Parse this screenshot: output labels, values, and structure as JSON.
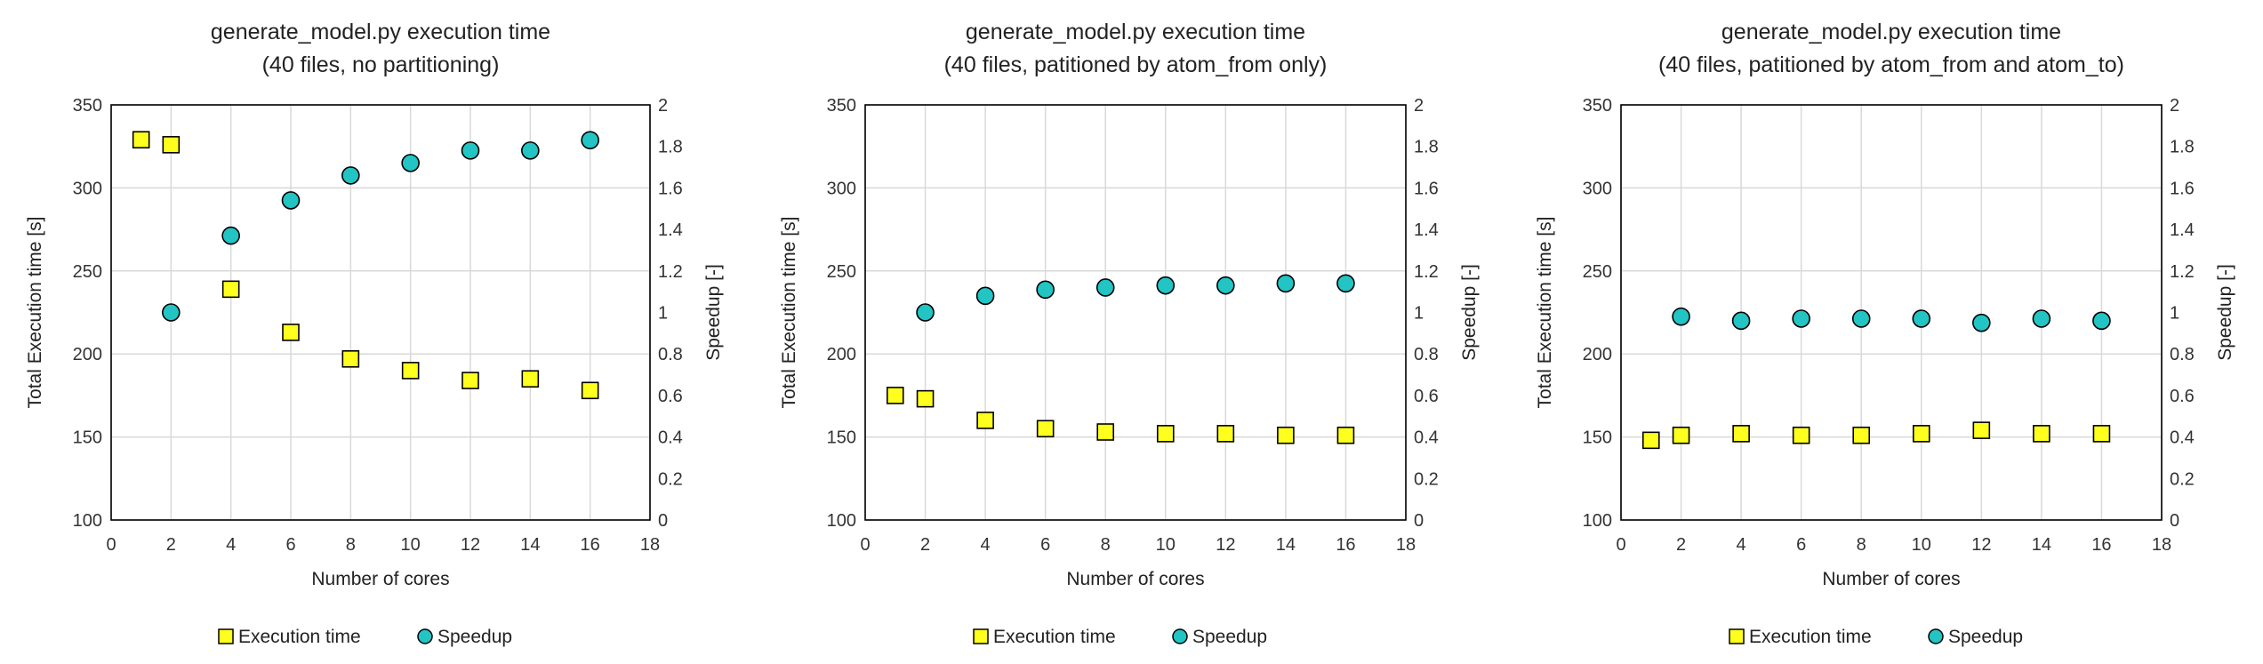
{
  "colors": {
    "execution": "#ffff1e",
    "speedup": "#22c4c4",
    "grid": "#d9d9d9",
    "axis": "#000000"
  },
  "chart_data": [
    {
      "type": "scatter",
      "title": "generate_model.py execution time",
      "subtitle": "(40 files, no partitioning)",
      "xlabel": "Number of cores",
      "ylabel": "Total Execution time [s]",
      "y2label": "Speedup [-]",
      "xlim": [
        0,
        18
      ],
      "xticks": [
        0,
        2,
        4,
        6,
        8,
        10,
        12,
        14,
        16,
        18
      ],
      "ylim": [
        100,
        350
      ],
      "yticks": [
        100,
        150,
        200,
        250,
        300,
        350
      ],
      "y2lim": [
        0,
        2
      ],
      "y2ticks": [
        "0",
        "0.2",
        "0.4",
        "0.6",
        "0.8",
        "1",
        "1.2",
        "1.4",
        "1.6",
        "1.8",
        "2"
      ],
      "grid": true,
      "legend_position": "bottom-center",
      "series": [
        {
          "name": "Execution time",
          "axis": "left",
          "marker": "square",
          "x": [
            1,
            2,
            4,
            6,
            8,
            10,
            12,
            14,
            16
          ],
          "y": [
            329,
            326,
            239,
            213,
            197,
            190,
            184,
            185,
            178
          ]
        },
        {
          "name": "Speedup",
          "axis": "right",
          "marker": "circle",
          "x": [
            2,
            4,
            6,
            8,
            10,
            12,
            14,
            16
          ],
          "y": [
            1.0,
            1.37,
            1.54,
            1.66,
            1.72,
            1.78,
            1.78,
            1.83
          ]
        }
      ]
    },
    {
      "type": "scatter",
      "title": "generate_model.py execution time",
      "subtitle": "(40 files, patitioned by atom_from only)",
      "xlabel": "Number of cores",
      "ylabel": "Total Execution time [s]",
      "y2label": "Speedup [-]",
      "xlim": [
        0,
        18
      ],
      "xticks": [
        0,
        2,
        4,
        6,
        8,
        10,
        12,
        14,
        16,
        18
      ],
      "ylim": [
        100,
        350
      ],
      "yticks": [
        100,
        150,
        200,
        250,
        300,
        350
      ],
      "y2lim": [
        0,
        2
      ],
      "y2ticks": [
        "0",
        "0.2",
        "0.4",
        "0.6",
        "0.8",
        "1",
        "1.2",
        "1.4",
        "1.6",
        "1.8",
        "2"
      ],
      "grid": true,
      "legend_position": "bottom-center",
      "series": [
        {
          "name": "Execution time",
          "axis": "left",
          "marker": "square",
          "x": [
            1,
            2,
            4,
            6,
            8,
            10,
            12,
            14,
            16
          ],
          "y": [
            175,
            173,
            160,
            155,
            153,
            152,
            152,
            151,
            151
          ]
        },
        {
          "name": "Speedup",
          "axis": "right",
          "marker": "circle",
          "x": [
            2,
            4,
            6,
            8,
            10,
            12,
            14,
            16
          ],
          "y": [
            1.0,
            1.08,
            1.11,
            1.12,
            1.13,
            1.13,
            1.14,
            1.14
          ]
        }
      ]
    },
    {
      "type": "scatter",
      "title": "generate_model.py execution time",
      "subtitle": "(40 files, patitioned by atom_from and atom_to)",
      "xlabel": "Number of cores",
      "ylabel": "Total Execution time [s]",
      "y2label": "Speedup [-]",
      "xlim": [
        0,
        18
      ],
      "xticks": [
        0,
        2,
        4,
        6,
        8,
        10,
        12,
        14,
        16,
        18
      ],
      "ylim": [
        100,
        350
      ],
      "yticks": [
        100,
        150,
        200,
        250,
        300,
        350
      ],
      "y2lim": [
        0,
        2
      ],
      "y2ticks": [
        "0",
        "0.2",
        "0.4",
        "0.6",
        "0.8",
        "1",
        "1.2",
        "1.4",
        "1.6",
        "1.8",
        "2"
      ],
      "grid": true,
      "legend_position": "bottom-center",
      "series": [
        {
          "name": "Execution time",
          "axis": "left",
          "marker": "square",
          "x": [
            1,
            2,
            4,
            6,
            8,
            10,
            12,
            14,
            16
          ],
          "y": [
            148,
            151,
            152,
            151,
            151,
            152,
            154,
            152,
            152
          ]
        },
        {
          "name": "Speedup",
          "axis": "right",
          "marker": "circle",
          "x": [
            2,
            4,
            6,
            8,
            10,
            12,
            14,
            16
          ],
          "y": [
            0.98,
            0.96,
            0.97,
            0.97,
            0.97,
            0.95,
            0.97,
            0.96
          ]
        }
      ]
    }
  ]
}
